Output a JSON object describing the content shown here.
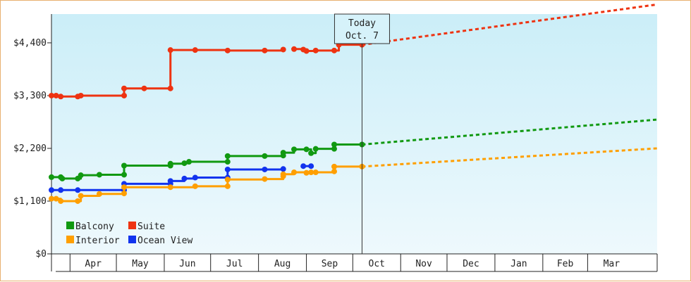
{
  "chart_data": {
    "type": "line",
    "today": {
      "line1": "Today",
      "line2": "Oct. 7",
      "date": "2023-10-07"
    },
    "ylim": [
      0,
      5000
    ],
    "xlim": [
      "2023-03-20",
      "2024-04-15"
    ],
    "yticks": [
      {
        "value": 0,
        "label": "$0"
      },
      {
        "value": 1100,
        "label": "$1,100"
      },
      {
        "value": 2200,
        "label": "$2,200"
      },
      {
        "value": 3300,
        "label": "$3,300"
      },
      {
        "value": 4400,
        "label": "$4,400"
      }
    ],
    "xticks": [
      {
        "label": "Apr",
        "start": "2023-04-01",
        "end": "2023-05-01"
      },
      {
        "label": "May",
        "start": "2023-05-01",
        "end": "2023-06-01"
      },
      {
        "label": "Jun",
        "start": "2023-06-01",
        "end": "2023-07-01"
      },
      {
        "label": "Jul",
        "start": "2023-07-01",
        "end": "2023-08-01"
      },
      {
        "label": "Aug",
        "start": "2023-08-01",
        "end": "2023-09-01"
      },
      {
        "label": "Sep",
        "start": "2023-09-01",
        "end": "2023-10-01"
      },
      {
        "label": "Oct",
        "start": "2023-10-01",
        "end": "2023-11-01"
      },
      {
        "label": "Nov",
        "start": "2023-11-01",
        "end": "2023-12-01"
      },
      {
        "label": "Dec",
        "start": "2023-12-01",
        "end": "2024-01-01"
      },
      {
        "label": "Jan",
        "start": "2024-01-01",
        "end": "2024-02-01"
      },
      {
        "label": "Feb",
        "start": "2024-02-01",
        "end": "2024-03-01"
      },
      {
        "label": "Mar",
        "start": "2024-03-01",
        "end": "2024-04-01"
      }
    ],
    "legend_position": "bottom-left",
    "grid": false,
    "series": [
      {
        "name": "Suite",
        "color": "#ee3311",
        "segments": [
          [
            [
              "2023-03-20",
              3300
            ],
            [
              "2023-03-23",
              3300
            ],
            [
              "2023-03-26",
              3280
            ],
            [
              "2023-04-06",
              3280
            ],
            [
              "2023-04-08",
              3300
            ],
            [
              "2023-05-06",
              3300
            ],
            [
              "2023-05-06",
              3450
            ],
            [
              "2023-05-19",
              3450
            ],
            [
              "2023-06-05",
              3450
            ],
            [
              "2023-06-05",
              4250
            ],
            [
              "2023-06-21",
              4250
            ],
            [
              "2023-07-12",
              4240
            ],
            [
              "2023-08-05",
              4240
            ],
            [
              "2023-08-17",
              4260
            ]
          ],
          [
            [
              "2023-08-24",
              4270
            ],
            [
              "2023-08-30",
              4260
            ],
            [
              "2023-09-01",
              4230
            ],
            [
              "2023-09-07",
              4240
            ],
            [
              "2023-09-19",
              4240
            ],
            [
              "2023-09-22",
              4360
            ],
            [
              "2023-10-07",
              4360
            ]
          ]
        ],
        "projection": [
          [
            "2023-10-07",
            4360
          ],
          [
            "2024-04-15",
            5200
          ]
        ]
      },
      {
        "name": "Balcony",
        "color": "#119911",
        "segments": [
          [
            [
              "2023-03-20",
              1600
            ],
            [
              "2023-03-26",
              1600
            ],
            [
              "2023-03-27",
              1570
            ],
            [
              "2023-04-06",
              1570
            ],
            [
              "2023-04-08",
              1640
            ],
            [
              "2023-04-20",
              1650
            ],
            [
              "2023-05-06",
              1650
            ],
            [
              "2023-05-06",
              1840
            ],
            [
              "2023-06-05",
              1840
            ],
            [
              "2023-06-05",
              1880
            ],
            [
              "2023-06-14",
              1890
            ],
            [
              "2023-06-17",
              1920
            ],
            [
              "2023-07-12",
              1920
            ],
            [
              "2023-07-12",
              2040
            ],
            [
              "2023-08-05",
              2040
            ],
            [
              "2023-08-17",
              2050
            ],
            [
              "2023-08-17",
              2110
            ],
            [
              "2023-08-24",
              2180
            ],
            [
              "2023-09-01",
              2180
            ],
            [
              "2023-09-04",
              2100
            ],
            [
              "2023-09-07",
              2190
            ],
            [
              "2023-09-19",
              2190
            ],
            [
              "2023-09-19",
              2280
            ],
            [
              "2023-10-07",
              2280
            ]
          ]
        ],
        "projection": [
          [
            "2023-10-07",
            2280
          ],
          [
            "2024-04-15",
            2800
          ]
        ]
      },
      {
        "name": "Ocean View",
        "color": "#1133ee",
        "segments": [
          [
            [
              "2023-03-20",
              1330
            ],
            [
              "2023-03-26",
              1330
            ],
            [
              "2023-04-06",
              1330
            ],
            [
              "2023-05-06",
              1330
            ],
            [
              "2023-05-06",
              1460
            ],
            [
              "2023-06-05",
              1460
            ],
            [
              "2023-06-05",
              1520
            ],
            [
              "2023-06-14",
              1570
            ],
            [
              "2023-06-21",
              1590
            ],
            [
              "2023-07-12",
              1590
            ],
            [
              "2023-07-12",
              1760
            ],
            [
              "2023-08-05",
              1760
            ],
            [
              "2023-08-17",
              1770
            ]
          ],
          [
            [
              "2023-08-30",
              1830
            ],
            [
              "2023-09-04",
              1830
            ]
          ]
        ],
        "projection": []
      },
      {
        "name": "Interior",
        "color": "#ff9f00",
        "segments": [
          [
            [
              "2023-03-20",
              1150
            ],
            [
              "2023-03-23",
              1150
            ],
            [
              "2023-03-26",
              1100
            ],
            [
              "2023-04-06",
              1100
            ],
            [
              "2023-04-08",
              1210
            ],
            [
              "2023-04-20",
              1250
            ],
            [
              "2023-05-06",
              1260
            ],
            [
              "2023-05-06",
              1390
            ],
            [
              "2023-06-05",
              1390
            ],
            [
              "2023-06-21",
              1410
            ],
            [
              "2023-07-12",
              1410
            ],
            [
              "2023-07-12",
              1550
            ],
            [
              "2023-08-05",
              1560
            ],
            [
              "2023-08-17",
              1620
            ],
            [
              "2023-08-17",
              1660
            ],
            [
              "2023-08-24",
              1700
            ],
            [
              "2023-09-01",
              1690
            ],
            [
              "2023-09-04",
              1700
            ],
            [
              "2023-09-07",
              1700
            ],
            [
              "2023-09-19",
              1720
            ],
            [
              "2023-09-19",
              1820
            ],
            [
              "2023-10-07",
              1820
            ]
          ]
        ],
        "projection": [
          [
            "2023-10-07",
            1820
          ],
          [
            "2024-04-15",
            2200
          ]
        ]
      }
    ],
    "legend": [
      {
        "label": "Balcony",
        "color": "#119911"
      },
      {
        "label": "Suite",
        "color": "#ee3311"
      },
      {
        "label": "Interior",
        "color": "#ff9f00"
      },
      {
        "label": "Ocean View",
        "color": "#1133ee"
      }
    ]
  }
}
